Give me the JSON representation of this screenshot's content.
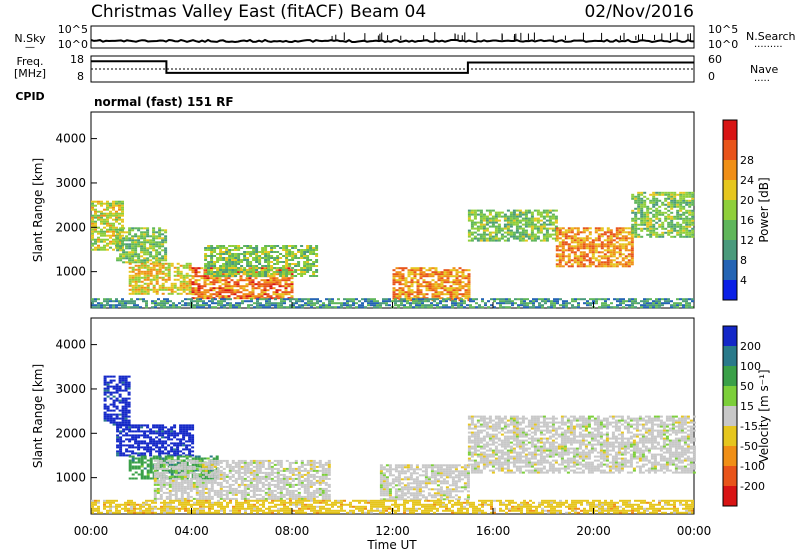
{
  "header": {
    "station": "Christmas Valley East (fitACF)",
    "beam": "Beam 04",
    "date": "02/Nov/2016"
  },
  "summary": {
    "nsky_label": [
      "N.Sky",
      "—"
    ],
    "nsky_ticks": [
      "10^5",
      "10^0"
    ],
    "nsearch_label": [
      "N.Search",
      "·········"
    ],
    "nsearch_ticks": [
      "10^5",
      "10^0"
    ],
    "freq_label": [
      "Freq.",
      "[MHz]"
    ],
    "freq_ticks": [
      "18",
      "8"
    ],
    "nave_label": [
      "Nave",
      "·····"
    ],
    "nave_ticks": [
      "60",
      "0"
    ],
    "cpid_label": "CPID",
    "cpid_value": "normal (fast) 151 RF"
  },
  "x_axis": {
    "label": "Time UT",
    "ticks": [
      "00:00",
      "04:00",
      "08:00",
      "12:00",
      "16:00",
      "20:00",
      "00:00"
    ]
  },
  "chart_data": [
    {
      "type": "line",
      "panel": "summary",
      "hours": [
        0,
        3,
        3,
        15,
        15,
        24
      ],
      "freq_mhz": [
        16,
        16,
        11.5,
        11.5,
        15.5,
        15.5
      ],
      "freq_ylim": [
        8,
        18
      ],
      "nave": [
        30,
        30,
        30,
        30,
        30,
        30
      ],
      "nave_ylim": [
        0,
        60
      ]
    },
    {
      "type": "heatmap",
      "panel": "power",
      "xlabel": "",
      "ylabel": "Slant Range [km]",
      "ylim": [
        180,
        4600
      ],
      "yticks": [
        "1000",
        "2000",
        "3000",
        "4000"
      ],
      "colorbar_label": "Power [dB]",
      "colorbar_ticks": [
        "4",
        "8",
        "12",
        "16",
        "20",
        "24",
        "28"
      ],
      "colorbar_colors": [
        "#0b20e6",
        "#2464b4",
        "#4a9a7c",
        "#5fb65a",
        "#8fcf3a",
        "#e6c61e",
        "#f08f16",
        "#e8541a",
        "#d81414"
      ],
      "regions": [
        {
          "hours": [
            0.0,
            1.2
          ],
          "range_km": [
            1500,
            2600
          ],
          "level": 18
        },
        {
          "hours": [
            1.0,
            3.0
          ],
          "range_km": [
            1200,
            2000
          ],
          "level": 14
        },
        {
          "hours": [
            1.5,
            4.0
          ],
          "range_km": [
            500,
            1200
          ],
          "level": 20
        },
        {
          "hours": [
            4.0,
            8.0
          ],
          "range_km": [
            400,
            1100
          ],
          "level": 26
        },
        {
          "hours": [
            4.5,
            9.0
          ],
          "range_km": [
            900,
            1600
          ],
          "level": 14
        },
        {
          "hours": [
            12.0,
            15.0
          ],
          "range_km": [
            350,
            1100
          ],
          "level": 24
        },
        {
          "hours": [
            15.0,
            18.5
          ],
          "range_km": [
            1700,
            2400
          ],
          "level": 14
        },
        {
          "hours": [
            18.5,
            21.5
          ],
          "range_km": [
            1100,
            2000
          ],
          "level": 24
        },
        {
          "hours": [
            21.5,
            24.0
          ],
          "range_km": [
            1800,
            2800
          ],
          "level": 14
        },
        {
          "hours": [
            0.0,
            24.0
          ],
          "range_km": [
            200,
            400
          ],
          "level": 8
        }
      ]
    },
    {
      "type": "heatmap",
      "panel": "velocity",
      "xlabel": "Time UT",
      "ylabel": "Slant Range [km]",
      "ylim": [
        180,
        4600
      ],
      "yticks": [
        "1000",
        "2000",
        "3000",
        "4000"
      ],
      "colorbar_label": "Velocity [m s⁻¹]",
      "colorbar_ticks": [
        "200",
        "100",
        "50",
        "15",
        "-15",
        "-50",
        "-100",
        "-200"
      ],
      "colorbar_colors": [
        "#1428c8",
        "#2a7a8a",
        "#3aa048",
        "#7ccf3a",
        "#c8c8c8",
        "#e6c61e",
        "#f08f16",
        "#e8541a",
        "#d81414"
      ],
      "regions": [
        {
          "hours": [
            0.5,
            1.5
          ],
          "range_km": [
            2200,
            3300
          ],
          "value": 200
        },
        {
          "hours": [
            1.0,
            4.0
          ],
          "range_km": [
            1500,
            2200
          ],
          "value": 200
        },
        {
          "hours": [
            1.5,
            5.0
          ],
          "range_km": [
            1000,
            1500
          ],
          "value": 50
        },
        {
          "hours": [
            2.5,
            9.5
          ],
          "range_km": [
            500,
            1400
          ],
          "value": 0
        },
        {
          "hours": [
            11.5,
            15.0
          ],
          "range_km": [
            500,
            1300
          ],
          "value": 0
        },
        {
          "hours": [
            15.0,
            24.0
          ],
          "range_km": [
            1100,
            2400
          ],
          "value": 0
        },
        {
          "hours": [
            0.0,
            24.0
          ],
          "range_km": [
            200,
            500
          ],
          "value": -30
        }
      ]
    }
  ]
}
